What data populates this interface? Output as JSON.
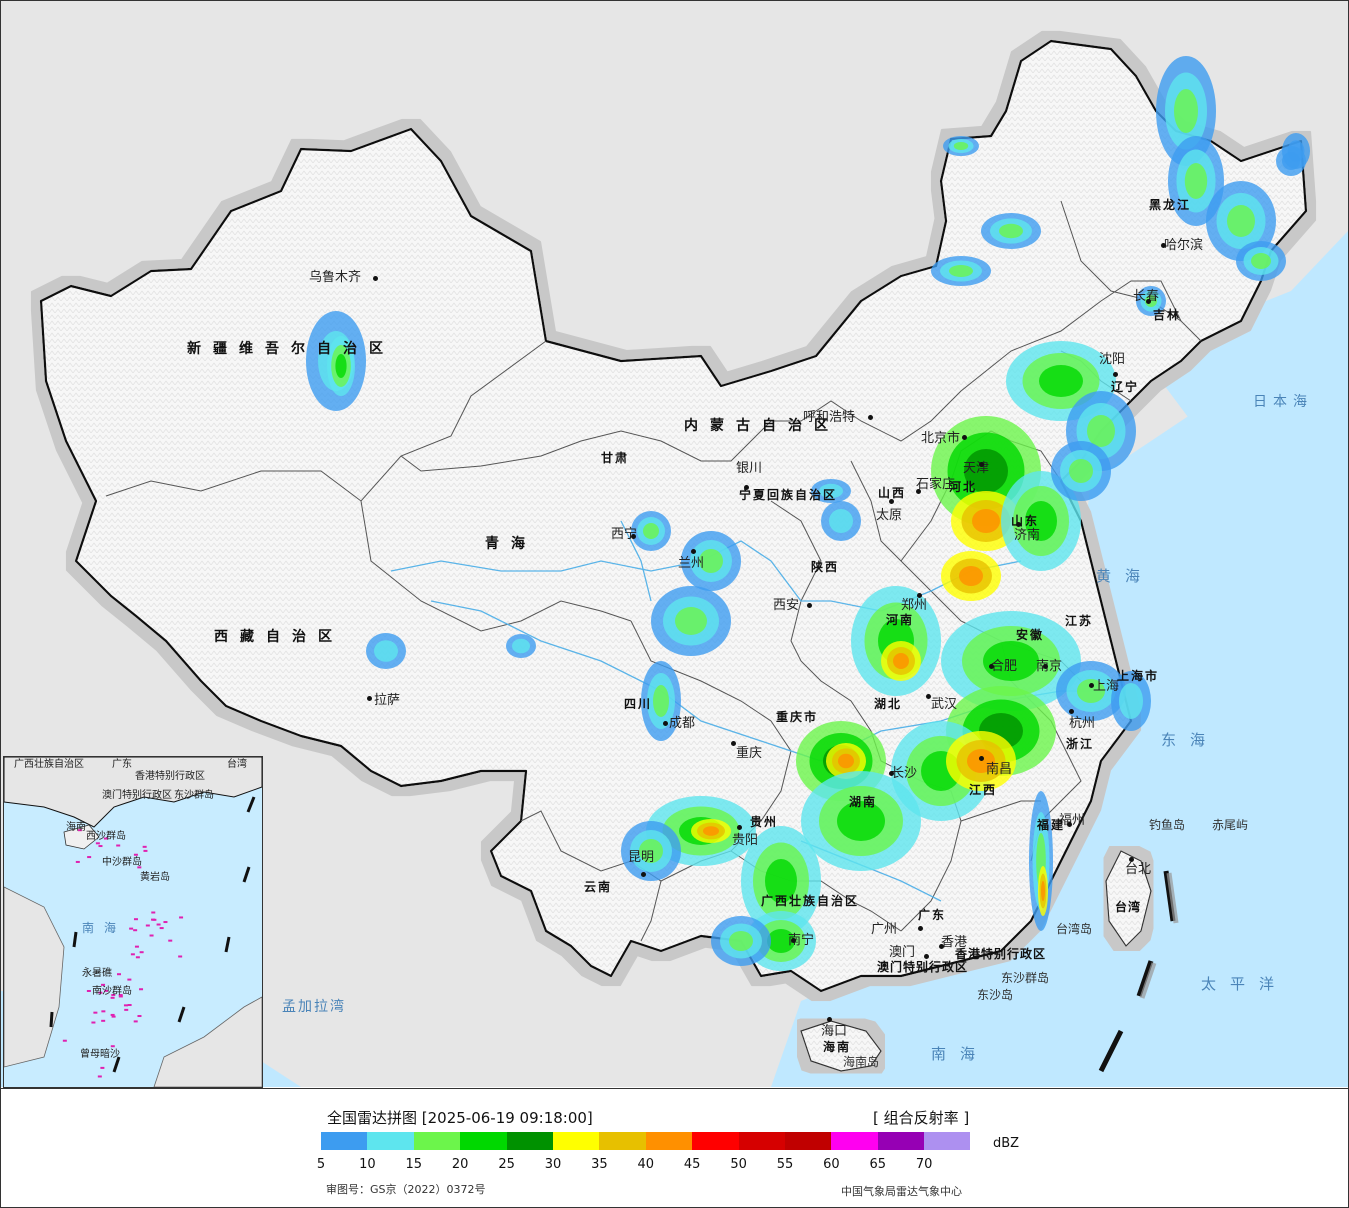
{
  "map": {
    "cities": [
      {
        "name": "乌鲁木齐"
      },
      {
        "name": "拉萨"
      },
      {
        "name": "西宁"
      },
      {
        "name": "兰州"
      },
      {
        "name": "银川"
      },
      {
        "name": "呼和浩特"
      },
      {
        "name": "太原"
      },
      {
        "name": "石家庄"
      },
      {
        "name": "北京市"
      },
      {
        "name": "天津"
      },
      {
        "name": "济南"
      },
      {
        "name": "郑州"
      },
      {
        "name": "西安"
      },
      {
        "name": "成都"
      },
      {
        "name": "重庆"
      },
      {
        "name": "贵阳"
      },
      {
        "name": "昆明"
      },
      {
        "name": "南宁"
      },
      {
        "name": "广州"
      },
      {
        "name": "澳门"
      },
      {
        "name": "香港"
      },
      {
        "name": "海口"
      },
      {
        "name": "长沙"
      },
      {
        "name": "武汉"
      },
      {
        "name": "南昌"
      },
      {
        "name": "合肥"
      },
      {
        "name": "南京"
      },
      {
        "name": "上海"
      },
      {
        "name": "杭州"
      },
      {
        "name": "福州"
      },
      {
        "name": "台北"
      },
      {
        "name": "沈阳"
      },
      {
        "name": "长春"
      },
      {
        "name": "哈尔滨"
      }
    ],
    "provinces": [
      {
        "name": "新疆维吾尔自治区"
      },
      {
        "name": "西藏自治区"
      },
      {
        "name": "青海"
      },
      {
        "name": "甘肃"
      },
      {
        "name": "四川"
      },
      {
        "name": "云南"
      },
      {
        "name": "内蒙古自治区"
      },
      {
        "name": "陕西"
      },
      {
        "name": "山西"
      },
      {
        "name": "河北"
      },
      {
        "name": "山东"
      },
      {
        "name": "河南"
      },
      {
        "name": "湖北"
      },
      {
        "name": "湖南"
      },
      {
        "name": "江西"
      },
      {
        "name": "安徽"
      },
      {
        "name": "江苏"
      },
      {
        "name": "浙江"
      },
      {
        "name": "福建"
      },
      {
        "name": "广东"
      },
      {
        "name": "广西壮族自治区"
      },
      {
        "name": "贵州"
      },
      {
        "name": "重庆市"
      },
      {
        "name": "上海市"
      },
      {
        "name": "宁夏回族自治区"
      },
      {
        "name": "辽宁"
      },
      {
        "name": "吉林"
      },
      {
        "name": "黑龙江"
      },
      {
        "name": "海南"
      },
      {
        "name": "台湾"
      },
      {
        "name": "香港特别行政区"
      },
      {
        "name": "澳门特别行政区"
      }
    ],
    "seas": [
      {
        "name": "日本海"
      },
      {
        "name": "黄海"
      },
      {
        "name": "东海"
      },
      {
        "name": "太平洋"
      },
      {
        "name": "南海"
      },
      {
        "name": "孟加拉湾"
      }
    ],
    "islands": [
      {
        "name": "钓鱼岛"
      },
      {
        "name": "赤尾屿"
      },
      {
        "name": "台湾岛"
      },
      {
        "name": "东沙群岛"
      },
      {
        "name": "东沙岛"
      },
      {
        "name": "海南岛"
      }
    ],
    "inset": {
      "labels": [
        "广西壮族自治区",
        "广东",
        "台湾",
        "香港特别行政区",
        "澳门特别行政区",
        "东沙群岛",
        "海南",
        "西沙群岛",
        "中沙群岛",
        "黄岩岛",
        "南海",
        "南沙群岛",
        "永暑礁",
        "曾母暗沙"
      ]
    }
  },
  "legend": {
    "title": "全国雷达拼图 [2025-06-19 09:18:00]",
    "product": "[ 组合反射率 ]",
    "unit": "dBZ",
    "ticks": [
      "5",
      "10",
      "15",
      "20",
      "25",
      "30",
      "35",
      "40",
      "45",
      "50",
      "55",
      "60",
      "65",
      "70"
    ],
    "colors": [
      "#3d9cf0",
      "#5ee5ee",
      "#6cf54b",
      "#00d800",
      "#009100",
      "#ffff00",
      "#e7c000",
      "#ff9000",
      "#ff0000",
      "#d60000",
      "#c00000",
      "#ff00f0",
      "#9600b4",
      "#ad90f0"
    ],
    "approval": "审图号：GS京（2022）0372号",
    "agency": "中国气象局雷达气象中心"
  }
}
